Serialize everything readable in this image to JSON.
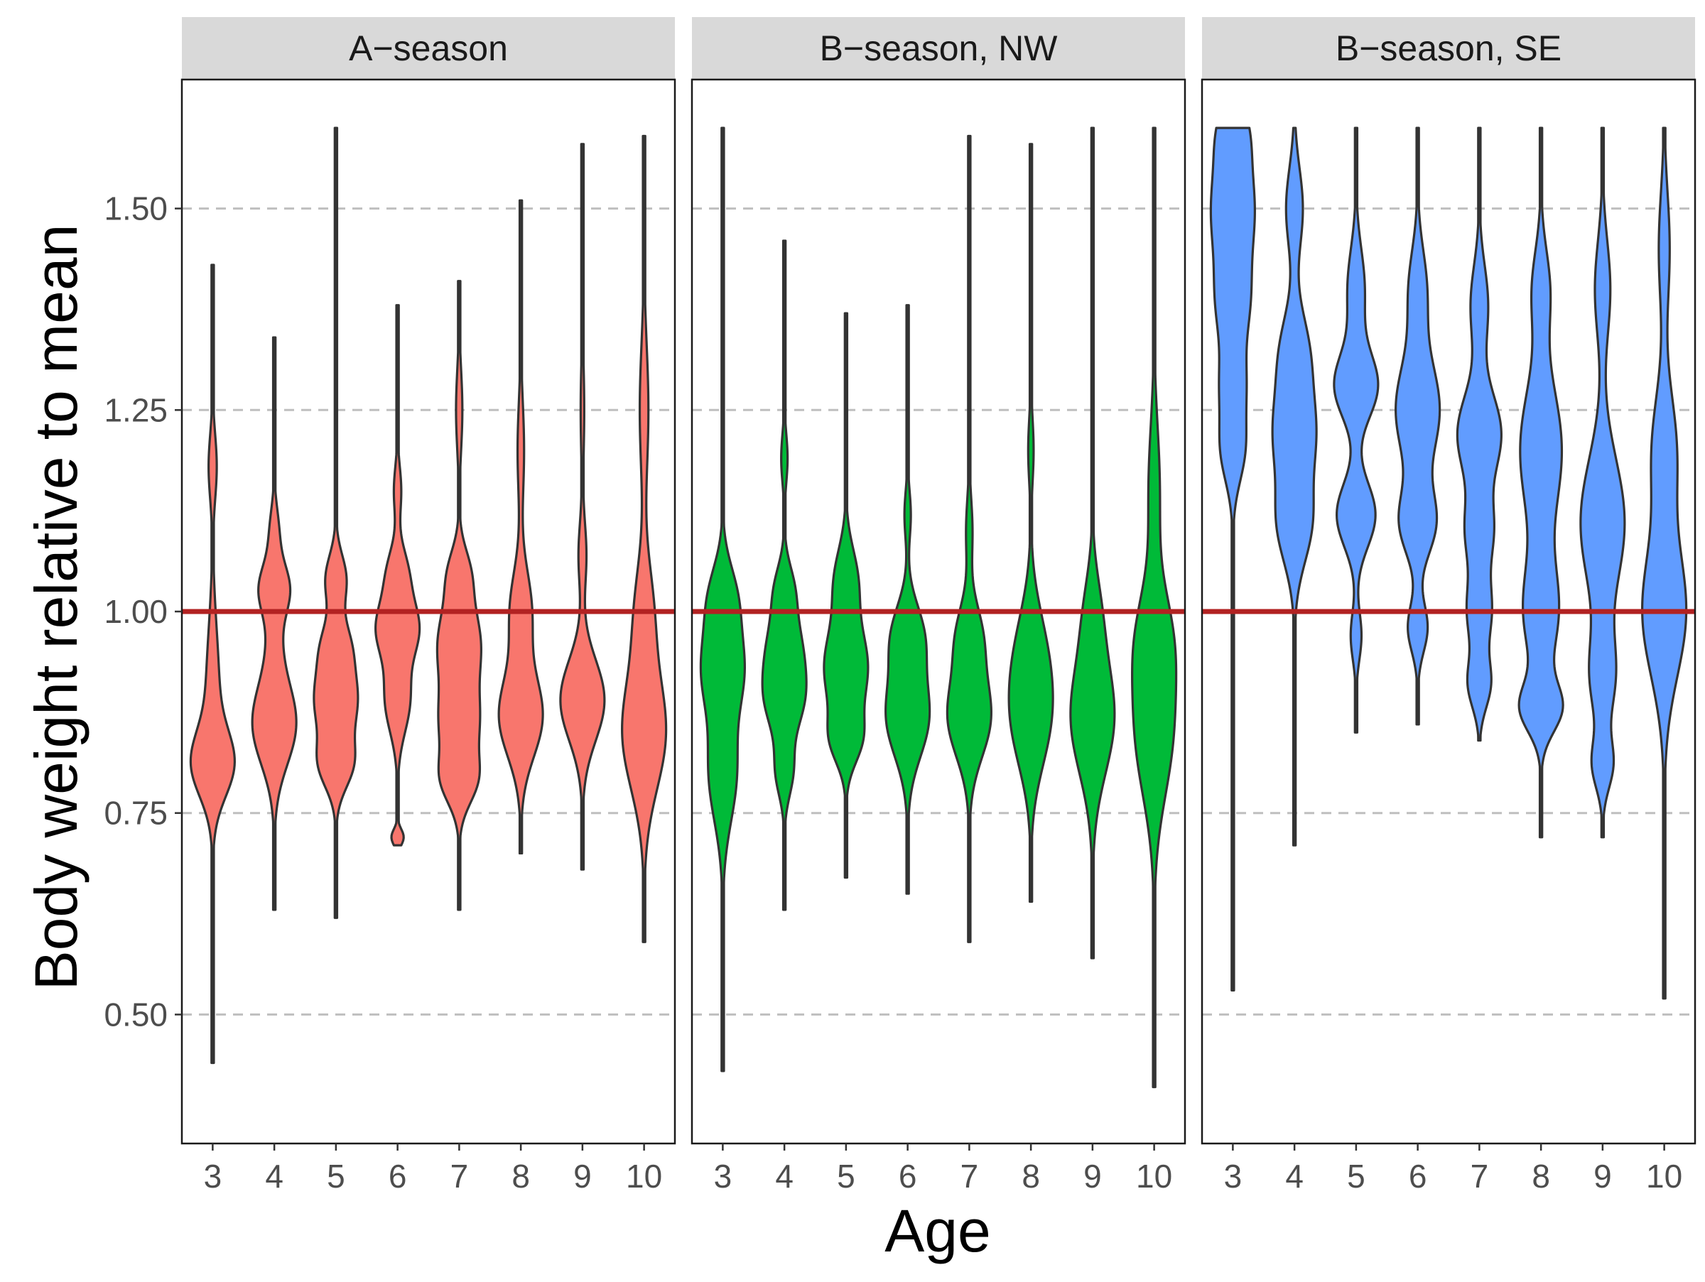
{
  "chart_data": {
    "type": "violin",
    "xlabel": "Age",
    "ylabel": "Body weight relative to mean",
    "ylim": [
      0.34,
      1.66
    ],
    "yticks": [
      0.5,
      0.75,
      1.0,
      1.25,
      1.5
    ],
    "ytick_labels": [
      "0.50",
      "0.75",
      "1.00",
      "1.25",
      "1.50"
    ],
    "categories": [
      "3",
      "4",
      "5",
      "6",
      "7",
      "8",
      "9",
      "10"
    ],
    "reference_line": {
      "value": 1.0,
      "color": "#b22222"
    },
    "grid": "horizontal dashed at major y ticks",
    "panels": [
      {
        "title": "A−season",
        "fill": "#F8766D",
        "violins": [
          {
            "age": "3",
            "min": 0.44,
            "max": 1.43,
            "scale": 1.0,
            "modes": [
              [
                0.81,
                0.04,
                1.0
              ],
              [
                0.9,
                0.08,
                0.35
              ],
              [
                1.18,
                0.04,
                0.22
              ]
            ]
          },
          {
            "age": "4",
            "min": 0.63,
            "max": 1.34,
            "scale": 1.0,
            "modes": [
              [
                0.86,
                0.05,
                1.0
              ],
              [
                1.03,
                0.03,
                0.6
              ],
              [
                0.97,
                0.05,
                0.25
              ],
              [
                1.1,
                0.03,
                0.2
              ]
            ]
          },
          {
            "age": "5",
            "min": 0.62,
            "max": 1.6,
            "scale": 1.0,
            "modes": [
              [
                0.81,
                0.03,
                0.75
              ],
              [
                0.89,
                0.04,
                1.0
              ],
              [
                0.96,
                0.03,
                0.55
              ],
              [
                1.04,
                0.03,
                0.5
              ]
            ]
          },
          {
            "age": "6",
            "min": 0.71,
            "max": 1.38,
            "scale": 1.0,
            "modes": [
              [
                0.72,
                0.01,
                0.3
              ],
              [
                0.89,
                0.04,
                0.6
              ],
              [
                0.98,
                0.035,
                1.0
              ],
              [
                1.05,
                0.03,
                0.45
              ],
              [
                1.15,
                0.03,
                0.18
              ]
            ]
          },
          {
            "age": "7",
            "min": 0.63,
            "max": 1.41,
            "scale": 1.0,
            "modes": [
              [
                0.79,
                0.03,
                0.75
              ],
              [
                0.86,
                0.04,
                0.8
              ],
              [
                0.96,
                0.05,
                1.0
              ],
              [
                1.05,
                0.03,
                0.4
              ],
              [
                1.25,
                0.05,
                0.15
              ]
            ]
          },
          {
            "age": "8",
            "min": 0.7,
            "max": 1.51,
            "scale": 1.0,
            "modes": [
              [
                0.87,
                0.05,
                1.0
              ],
              [
                1.0,
                0.05,
                0.5
              ],
              [
                1.2,
                0.06,
                0.15
              ]
            ]
          },
          {
            "age": "9",
            "min": 0.68,
            "max": 1.58,
            "scale": 1.0,
            "modes": [
              [
                0.89,
                0.05,
                1.0
              ],
              [
                1.07,
                0.04,
                0.18
              ],
              [
                1.25,
                0.06,
                0.08
              ]
            ]
          },
          {
            "age": "10",
            "min": 0.59,
            "max": 1.59,
            "scale": 1.0,
            "modes": [
              [
                0.85,
                0.07,
                1.0
              ],
              [
                1.0,
                0.06,
                0.4
              ],
              [
                1.25,
                0.08,
                0.2
              ]
            ]
          }
        ]
      },
      {
        "title": "B−season, NW",
        "fill": "#00BA38",
        "violins": [
          {
            "age": "3",
            "min": 0.43,
            "max": 1.6,
            "scale": 1.0,
            "modes": [
              [
                0.8,
                0.06,
                0.7
              ],
              [
                0.93,
                0.05,
                1.0
              ],
              [
                1.02,
                0.04,
                0.6
              ]
            ]
          },
          {
            "age": "4",
            "min": 0.63,
            "max": 1.46,
            "scale": 1.0,
            "modes": [
              [
                0.8,
                0.03,
                0.45
              ],
              [
                0.89,
                0.04,
                1.0
              ],
              [
                0.96,
                0.04,
                0.8
              ],
              [
                1.03,
                0.03,
                0.45
              ],
              [
                1.19,
                0.03,
                0.18
              ]
            ]
          },
          {
            "age": "5",
            "min": 0.67,
            "max": 1.37,
            "scale": 1.0,
            "modes": [
              [
                0.84,
                0.03,
                0.6
              ],
              [
                0.93,
                0.05,
                1.0
              ],
              [
                1.04,
                0.04,
                0.5
              ]
            ]
          },
          {
            "age": "6",
            "min": 0.65,
            "max": 1.38,
            "scale": 1.0,
            "modes": [
              [
                0.87,
                0.05,
                1.0
              ],
              [
                0.97,
                0.04,
                0.7
              ],
              [
                1.12,
                0.03,
                0.15
              ]
            ]
          },
          {
            "age": "7",
            "min": 0.59,
            "max": 1.59,
            "scale": 1.0,
            "modes": [
              [
                0.87,
                0.05,
                1.0
              ],
              [
                0.97,
                0.04,
                0.55
              ],
              [
                1.1,
                0.04,
                0.15
              ]
            ]
          },
          {
            "age": "8",
            "min": 0.64,
            "max": 1.58,
            "scale": 1.0,
            "modes": [
              [
                0.86,
                0.06,
                0.9
              ],
              [
                0.95,
                0.06,
                0.7
              ],
              [
                1.2,
                0.04,
                0.15
              ]
            ]
          },
          {
            "age": "9",
            "min": 0.57,
            "max": 1.6,
            "scale": 1.0,
            "modes": [
              [
                0.87,
                0.07,
                1.0
              ],
              [
                1.0,
                0.05,
                0.3
              ]
            ]
          },
          {
            "age": "10",
            "min": 0.41,
            "max": 1.6,
            "scale": 1.0,
            "modes": [
              [
                0.85,
                0.08,
                0.8
              ],
              [
                0.97,
                0.06,
                0.6
              ],
              [
                1.15,
                0.08,
                0.25
              ]
            ]
          }
        ]
      },
      {
        "title": "B−season, SE",
        "fill": "#619CFF",
        "violins": [
          {
            "age": "3",
            "min": 0.53,
            "max": 1.6,
            "scale": 1.0,
            "modes": [
              [
                1.2,
                0.04,
                0.55
              ],
              [
                1.28,
                0.04,
                0.5
              ],
              [
                1.38,
                0.05,
                0.7
              ],
              [
                1.5,
                0.06,
                1.0
              ],
              [
                1.6,
                0.04,
                0.55
              ]
            ]
          },
          {
            "age": "4",
            "min": 0.71,
            "max": 1.6,
            "scale": 1.0,
            "modes": [
              [
                1.11,
                0.05,
                0.9
              ],
              [
                1.22,
                0.05,
                1.0
              ],
              [
                1.32,
                0.05,
                0.75
              ],
              [
                1.5,
                0.05,
                0.45
              ]
            ]
          },
          {
            "age": "5",
            "min": 0.85,
            "max": 1.6,
            "scale": 1.0,
            "modes": [
              [
                0.97,
                0.03,
                0.25
              ],
              [
                1.12,
                0.04,
                0.9
              ],
              [
                1.28,
                0.04,
                1.0
              ],
              [
                1.4,
                0.05,
                0.4
              ]
            ]
          },
          {
            "age": "6",
            "min": 0.86,
            "max": 1.6,
            "scale": 1.0,
            "modes": [
              [
                0.98,
                0.03,
                0.45
              ],
              [
                1.11,
                0.04,
                0.8
              ],
              [
                1.25,
                0.06,
                1.0
              ],
              [
                1.4,
                0.05,
                0.4
              ]
            ]
          },
          {
            "age": "7",
            "min": 0.84,
            "max": 1.6,
            "scale": 1.0,
            "modes": [
              [
                0.91,
                0.03,
                0.5
              ],
              [
                1.0,
                0.04,
                0.55
              ],
              [
                1.1,
                0.04,
                0.6
              ],
              [
                1.22,
                0.05,
                1.0
              ],
              [
                1.38,
                0.05,
                0.4
              ]
            ]
          },
          {
            "age": "8",
            "min": 0.72,
            "max": 1.6,
            "scale": 1.0,
            "modes": [
              [
                0.88,
                0.03,
                0.8
              ],
              [
                1.0,
                0.06,
                0.7
              ],
              [
                1.2,
                0.08,
                0.85
              ],
              [
                1.4,
                0.05,
                0.35
              ]
            ]
          },
          {
            "age": "9",
            "min": 0.72,
            "max": 1.6,
            "scale": 1.0,
            "modes": [
              [
                0.81,
                0.03,
                0.45
              ],
              [
                0.92,
                0.05,
                0.55
              ],
              [
                1.11,
                0.08,
                1.0
              ],
              [
                1.4,
                0.06,
                0.35
              ]
            ]
          },
          {
            "age": "10",
            "min": 0.52,
            "max": 1.6,
            "scale": 1.0,
            "modes": [
              [
                1.0,
                0.08,
                1.0
              ],
              [
                1.2,
                0.07,
                0.55
              ],
              [
                1.45,
                0.07,
                0.25
              ]
            ]
          }
        ]
      }
    ]
  }
}
